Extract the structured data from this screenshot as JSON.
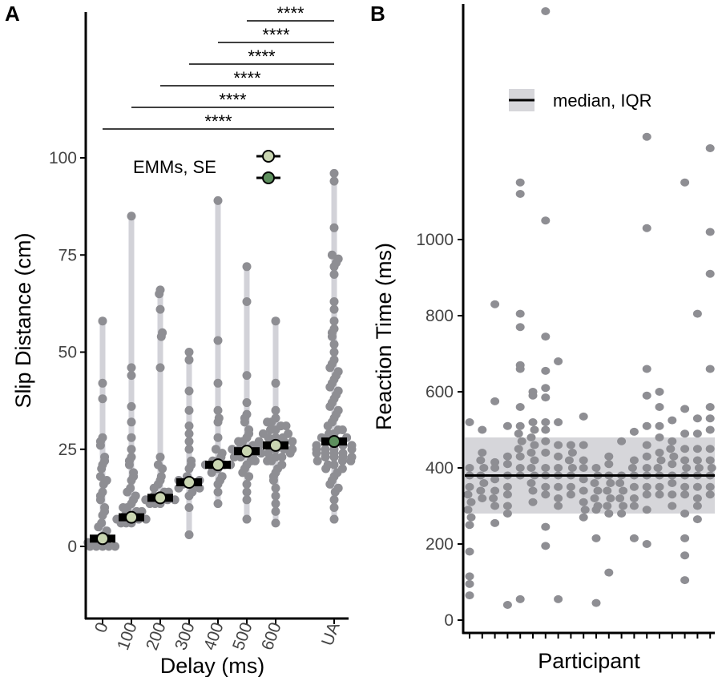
{
  "chart_data": [
    {
      "panel_label": "A",
      "type": "scatter",
      "xlabel": "Delay (ms)",
      "ylabel": "Slip Distance (cm)",
      "categories": [
        "0",
        "100",
        "200",
        "300",
        "400",
        "500",
        "600",
        "UA"
      ],
      "yticks": [
        0,
        25,
        50,
        75,
        100
      ],
      "ylim": [
        -3,
        118
      ],
      "legend": {
        "label": "EMMs, SE",
        "placement": "top-center"
      },
      "colors": {
        "points": "#8e8e93",
        "range": "#d2d2d8",
        "emm_delay": "#c9d5b1",
        "emm_ua": "#5d8f5d"
      },
      "ranges": [
        [
          0,
          58
        ],
        [
          6,
          85
        ],
        [
          11,
          66
        ],
        [
          3,
          50
        ],
        [
          11,
          89
        ],
        [
          7,
          72
        ],
        [
          6,
          58
        ],
        [
          7,
          96
        ]
      ],
      "emm": [
        2,
        7.5,
        12.5,
        16.5,
        21,
        24.5,
        26,
        27
      ],
      "se": [
        1,
        1,
        1,
        1,
        1,
        1,
        1,
        1
      ],
      "points": [
        [
          58,
          42,
          38,
          28,
          27,
          26,
          23,
          22,
          21,
          20,
          18,
          17,
          16,
          14,
          13,
          12,
          10,
          9,
          8,
          6,
          5,
          4,
          3,
          2,
          1,
          1,
          0,
          0,
          0,
          0,
          0
        ],
        [
          85,
          46,
          44,
          36,
          32,
          28,
          25,
          23,
          22,
          21,
          19,
          18,
          17,
          15,
          14,
          13,
          12,
          11,
          10,
          10,
          9,
          9,
          8,
          8,
          7,
          7,
          7,
          6,
          6,
          6
        ],
        [
          66,
          65,
          61,
          55,
          54,
          46,
          23,
          21,
          20,
          18,
          17,
          16,
          15,
          14,
          14,
          13,
          13,
          12,
          12,
          12,
          11,
          11,
          11
        ],
        [
          50,
          48,
          40,
          35,
          31,
          29,
          27,
          25,
          22,
          21,
          20,
          18,
          17,
          17,
          16,
          16,
          16,
          15,
          15,
          14,
          13,
          10,
          3
        ],
        [
          89,
          53,
          42,
          35,
          33,
          32,
          28,
          25,
          24,
          23,
          22,
          22,
          21,
          21,
          21,
          20,
          20,
          19,
          18,
          17,
          16,
          14,
          11
        ],
        [
          72,
          63,
          44,
          37,
          34,
          33,
          32,
          30,
          29,
          28,
          27,
          27,
          26,
          26,
          25,
          25,
          25,
          24,
          24,
          24,
          23,
          23,
          22,
          22,
          21,
          20,
          19,
          18,
          16,
          14,
          12,
          7
        ],
        [
          58,
          42,
          35,
          33,
          32,
          32,
          31,
          31,
          30,
          30,
          29,
          29,
          28,
          28,
          28,
          27,
          27,
          27,
          26,
          26,
          26,
          25,
          25,
          25,
          24,
          24,
          24,
          23,
          23,
          22,
          22,
          21,
          20,
          19,
          18,
          17,
          15,
          13,
          11,
          9,
          6
        ],
        [
          96,
          94,
          82,
          75,
          74,
          73,
          72,
          70,
          63,
          61,
          58,
          56,
          55,
          54,
          52,
          50,
          48,
          47,
          46,
          45,
          44,
          43,
          42,
          41,
          40,
          39,
          38,
          37,
          36,
          35,
          34,
          33,
          32,
          31,
          30,
          30,
          29,
          29,
          28,
          28,
          27,
          27,
          27,
          26,
          26,
          26,
          25,
          25,
          25,
          25,
          24,
          24,
          24,
          24,
          23,
          23,
          23,
          23,
          22,
          22,
          22,
          21,
          21,
          20,
          20,
          19,
          18,
          17,
          16,
          15,
          14,
          12,
          10,
          7
        ]
      ],
      "comparisons": [
        {
          "from": "500",
          "to": "UA",
          "label": "****"
        },
        {
          "from": "400",
          "to": "UA",
          "label": "****"
        },
        {
          "from": "300",
          "to": "UA",
          "label": "****"
        },
        {
          "from": "200",
          "to": "UA",
          "label": "****"
        },
        {
          "from": "100",
          "to": "UA",
          "label": "****"
        },
        {
          "from": "0",
          "to": "UA",
          "label": "****"
        }
      ]
    },
    {
      "panel_label": "B",
      "type": "scatter",
      "xlabel": "Participant",
      "ylabel": "Reaction Time (ms)",
      "yticks": [
        0,
        200,
        400,
        600,
        800,
        1000
      ],
      "ylim": [
        -30,
        1620
      ],
      "median": 380,
      "iqr": [
        280,
        480
      ],
      "legend": {
        "label": "median, IQR",
        "placement": "top-center"
      },
      "colors": {
        "points": "#8e8e93",
        "iqr": "#d6d6da",
        "median": "#000000"
      },
      "participants": [
        [
          520,
          400,
          380,
          350,
          330,
          310,
          290,
          270,
          250,
          180,
          115,
          95,
          65
        ],
        [
          500,
          440,
          420,
          400,
          380,
          360,
          340,
          320
        ],
        [
          830,
          575,
          415,
          400,
          370,
          340,
          320,
          300,
          255
        ],
        [
          510,
          430,
          410,
          380,
          350,
          330,
          300,
          280,
          40
        ],
        [
          1150,
          1120,
          805,
          770,
          670,
          660,
          560,
          510,
          490,
          470,
          450,
          430,
          400,
          380,
          55
        ],
        [
          600,
          590,
          520,
          500,
          480,
          460,
          440,
          420,
          400,
          380,
          360,
          340,
          310
        ],
        [
          1600,
          1050,
          745,
          655,
          610,
          585,
          520,
          500,
          470,
          440,
          400,
          380,
          350,
          330,
          245,
          195
        ],
        [
          680,
          520,
          460,
          430,
          400,
          380,
          350,
          320,
          300,
          55
        ],
        [
          460,
          440,
          420,
          400,
          380,
          350,
          330
        ],
        [
          535,
          460,
          420,
          400,
          370,
          340,
          310,
          290,
          270
        ],
        [
          400,
          380,
          360,
          340,
          320,
          300,
          290,
          215,
          45
        ],
        [
          430,
          410,
          380,
          360,
          340,
          320,
          300,
          280,
          125
        ],
        [
          470,
          380,
          360,
          340,
          320,
          300,
          280
        ],
        [
          495,
          420,
          400,
          380,
          350,
          320,
          300,
          215
        ],
        [
          1270,
          1030,
          660,
          590,
          510,
          460,
          430,
          400,
          380,
          350,
          330,
          290,
          200
        ],
        [
          600,
          560,
          510,
          480,
          440,
          420,
          400,
          380,
          350,
          330
        ],
        [
          525,
          470,
          450,
          430,
          410,
          380,
          360,
          330,
          300
        ],
        [
          1150,
          555,
          490,
          450,
          420,
          400,
          380,
          350,
          330,
          280,
          215,
          170,
          105
        ],
        [
          805,
          530,
          490,
          450,
          420,
          400,
          380,
          350,
          320,
          300,
          265
        ],
        [
          1240,
          1020,
          910,
          660,
          560,
          530,
          500,
          450,
          420,
          400,
          380,
          350,
          330
        ]
      ]
    }
  ]
}
